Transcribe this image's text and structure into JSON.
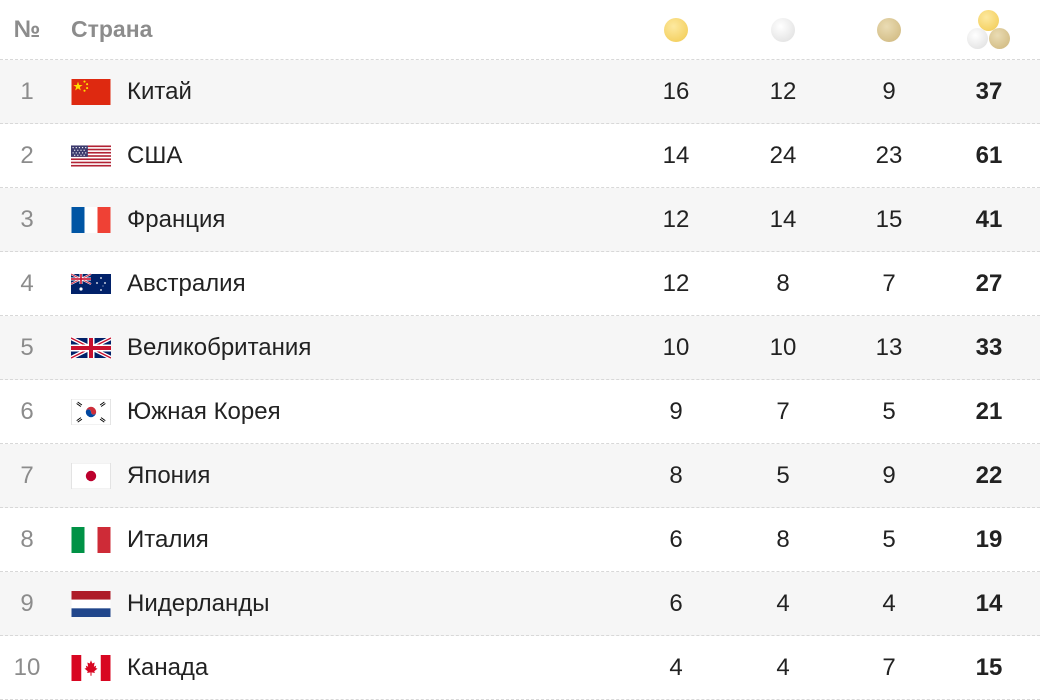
{
  "header": {
    "rank_label": "№",
    "country_label": "Страна",
    "icons": [
      "gold-medal-icon",
      "silver-medal-icon",
      "bronze-medal-icon",
      "total-medals-icon"
    ]
  },
  "rows": [
    {
      "rank": "1",
      "country": "Китай",
      "flag": "china-flag-icon",
      "gold": "16",
      "silver": "12",
      "bronze": "9",
      "total": "37"
    },
    {
      "rank": "2",
      "country": "США",
      "flag": "usa-flag-icon",
      "gold": "14",
      "silver": "24",
      "bronze": "23",
      "total": "61"
    },
    {
      "rank": "3",
      "country": "Франция",
      "flag": "france-flag-icon",
      "gold": "12",
      "silver": "14",
      "bronze": "15",
      "total": "41"
    },
    {
      "rank": "4",
      "country": "Австралия",
      "flag": "australia-flag-icon",
      "gold": "12",
      "silver": "8",
      "bronze": "7",
      "total": "27"
    },
    {
      "rank": "5",
      "country": "Великобритания",
      "flag": "uk-flag-icon",
      "gold": "10",
      "silver": "10",
      "bronze": "13",
      "total": "33"
    },
    {
      "rank": "6",
      "country": "Южная Корея",
      "flag": "south-korea-flag-icon",
      "gold": "9",
      "silver": "7",
      "bronze": "5",
      "total": "21"
    },
    {
      "rank": "7",
      "country": "Япония",
      "flag": "japan-flag-icon",
      "gold": "8",
      "silver": "5",
      "bronze": "9",
      "total": "22"
    },
    {
      "rank": "8",
      "country": "Италия",
      "flag": "italy-flag-icon",
      "gold": "6",
      "silver": "8",
      "bronze": "5",
      "total": "19"
    },
    {
      "rank": "9",
      "country": "Нидерланды",
      "flag": "netherlands-flag-icon",
      "gold": "6",
      "silver": "4",
      "bronze": "4",
      "total": "14"
    },
    {
      "rank": "10",
      "country": "Канада",
      "flag": "canada-flag-icon",
      "gold": "4",
      "silver": "4",
      "bronze": "7",
      "total": "15"
    }
  ],
  "colors": {
    "gold": "#f1c94e",
    "silver": "#dcdcdc",
    "bronze": "#cdb57a",
    "alt_row": "#f6f6f6",
    "muted_text": "#8c8c8c"
  }
}
